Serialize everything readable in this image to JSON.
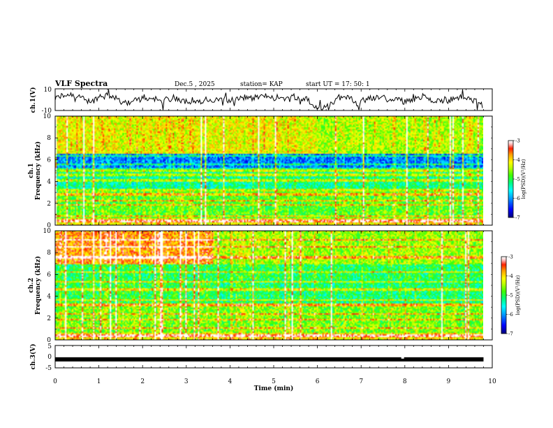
{
  "header": {
    "title": "VLF Spectra",
    "date": "Dec.5 , 2025",
    "station": "station= KAP",
    "start": "start UT = 17: 50: 1"
  },
  "colors": {
    "axis": "#000000",
    "waveform": "#000000",
    "colormap": [
      "#000080",
      "#0000ff",
      "#00a0ff",
      "#00ffff",
      "#00ff80",
      "#40ff00",
      "#c0ff00",
      "#ffff00",
      "#ffa000",
      "#ff2000",
      "#ffc0c0",
      "#ffffff"
    ]
  },
  "chart_data": [
    {
      "type": "line",
      "name": "ch1-waveform",
      "ylabel": "ch.1(V)",
      "ylim": [
        -10,
        10
      ],
      "yticks": [
        "10",
        "-10"
      ],
      "xlim": [
        0,
        10
      ],
      "series_description": "noisy waveform oscillating mostly between -6 and 6 V, ends near 9.8 min",
      "x_end": 9.8
    },
    {
      "type": "heatmap",
      "name": "ch1-spectrogram",
      "ylabel": "Frequency (kHz)",
      "channel": "ch.1",
      "ylim": [
        0,
        10
      ],
      "yticks": [
        "0",
        "2",
        "4",
        "6",
        "8",
        "10"
      ],
      "xlim": [
        0,
        10
      ],
      "x_end": 9.8,
      "bands_khz": [
        0.3,
        0.8,
        1.8,
        2.2,
        2.8,
        3.2,
        4.1,
        4.6,
        5.0,
        5.6,
        6.4
      ],
      "colorbar": {
        "label": "log(PSD)(V²/Hz)",
        "min": -7,
        "max": -3,
        "ticks": [
          "-3",
          "-4",
          "-5",
          "-6",
          "-7"
        ]
      }
    },
    {
      "type": "heatmap",
      "name": "ch2-spectrogram",
      "ylabel": "Frequency (kHz)",
      "channel": "ch.2",
      "ylim": [
        0,
        10
      ],
      "yticks": [
        "0",
        "2",
        "4",
        "6",
        "8",
        "10"
      ],
      "xlim": [
        0,
        10
      ],
      "x_end": 9.8,
      "bands_khz": [
        0.3,
        1.0,
        1.8,
        2.3,
        3.2,
        3.6,
        4.6,
        5.3,
        6.2,
        7.6,
        8.6,
        9.2
      ],
      "colorbar": {
        "label": "log(PSD)(V²/Hz)",
        "min": -7,
        "max": -3,
        "ticks": [
          "-3",
          "-4",
          "-5",
          "-6",
          "-7"
        ]
      }
    },
    {
      "type": "line",
      "name": "ch3-signal",
      "ylabel": "ch.3(V)",
      "ylim": [
        -5,
        5
      ],
      "yticks": [
        "5",
        "0",
        "-5"
      ],
      "xlim": [
        0,
        10
      ],
      "x_end": 9.8,
      "level": -1.2,
      "dropouts": [
        7.95
      ],
      "xlabel": "Time (min)",
      "xticks": [
        "0",
        "1",
        "2",
        "3",
        "4",
        "5",
        "6",
        "7",
        "8",
        "9",
        "10"
      ]
    }
  ]
}
